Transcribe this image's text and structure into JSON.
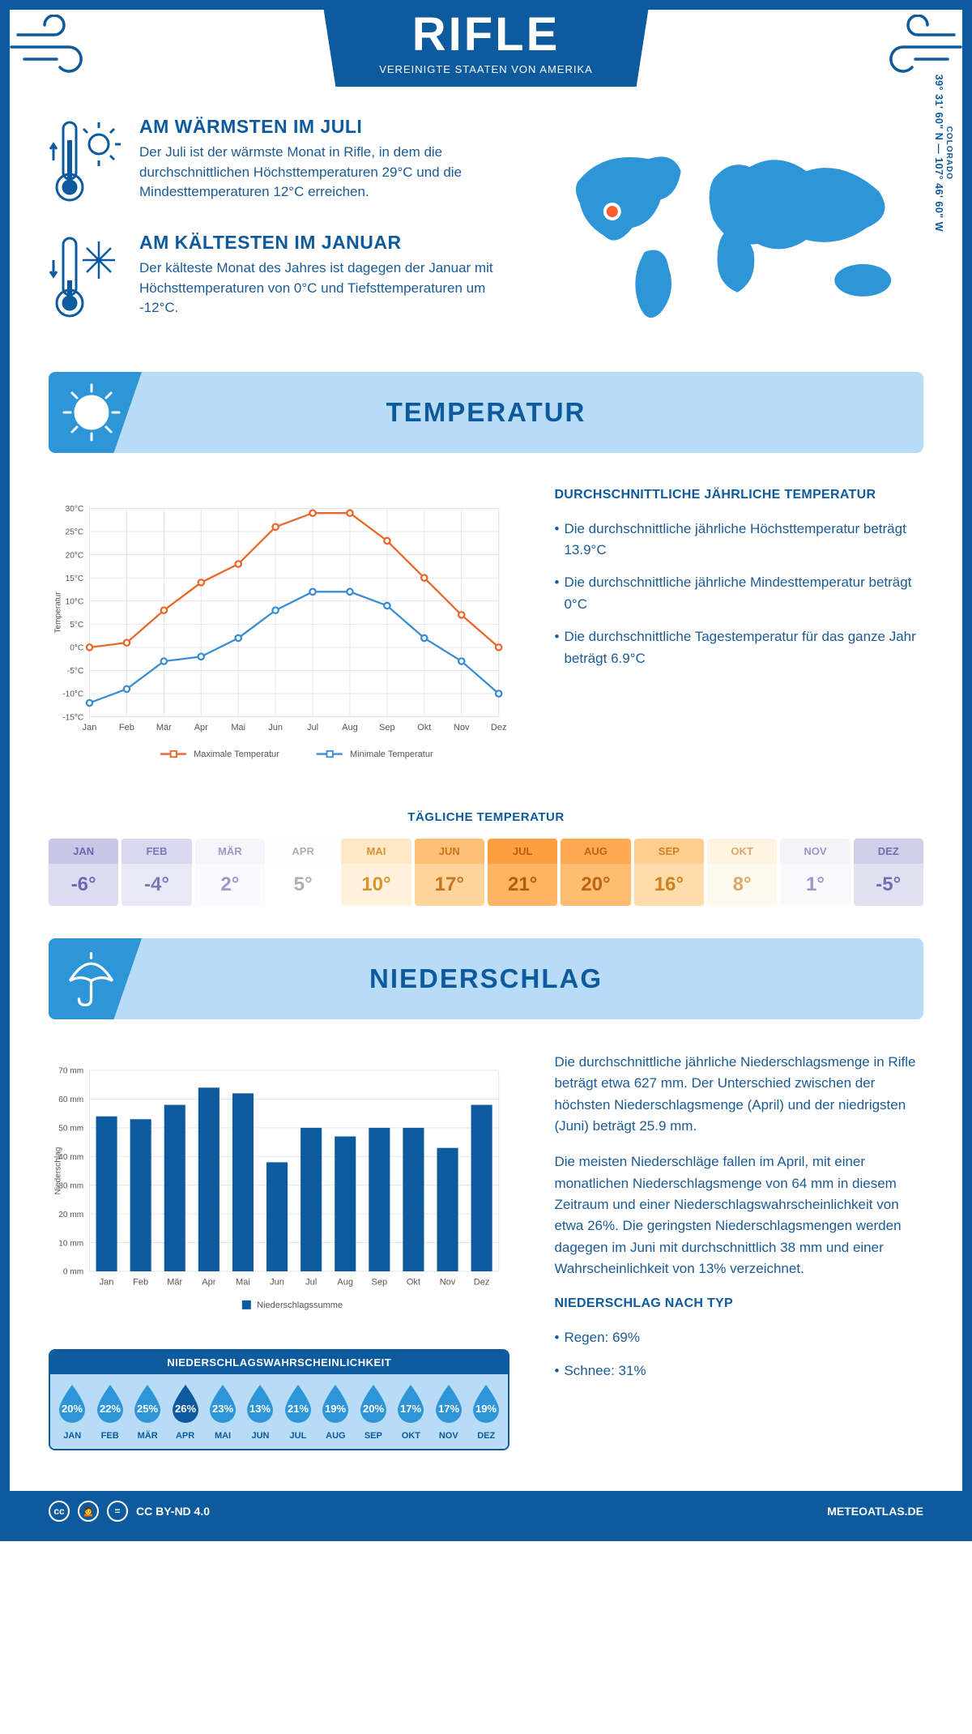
{
  "colors": {
    "primary": "#0d5a9e",
    "accent": "#2e96d8",
    "pale": "#b8dcf5",
    "text": "#1a5b95",
    "orange_line": "#e8682c",
    "blue_line": "#3a8dd4",
    "grid": "#e3e3e3",
    "bar": "#0d5a9e"
  },
  "header": {
    "title": "RIFLE",
    "subtitle": "VEREINIGTE STAATEN VON AMERIKA"
  },
  "facts": {
    "warm": {
      "title": "AM WÄRMSTEN IM JULI",
      "body": "Der Juli ist der wärmste Monat in Rifle, in dem die durchschnittlichen Höchsttemperaturen 29°C und die Mindesttemperaturen 12°C erreichen."
    },
    "cold": {
      "title": "AM KÄLTESTEN IM JANUAR",
      "body": "Der kälteste Monat des Jahres ist dagegen der Januar mit Höchsttemperaturen von 0°C und Tiefsttemperaturen um -12°C."
    }
  },
  "map": {
    "coords": "39° 31' 60\" N — 107° 46' 60\" W",
    "state": "COLORADO"
  },
  "sections": {
    "temp": "TEMPERATUR",
    "rain": "NIEDERSCHLAG"
  },
  "months": [
    "Jan",
    "Feb",
    "Mär",
    "Apr",
    "Mai",
    "Jun",
    "Jul",
    "Aug",
    "Sep",
    "Okt",
    "Nov",
    "Dez"
  ],
  "months_upper": [
    "JAN",
    "FEB",
    "MÄR",
    "APR",
    "MAI",
    "JUN",
    "JUL",
    "AUG",
    "SEP",
    "OKT",
    "NOV",
    "DEZ"
  ],
  "temp_chart": {
    "ylabel": "Temperatur",
    "ymin": -15,
    "ymax": 30,
    "ystep": 5,
    "max_series": [
      0,
      1,
      8,
      14,
      18,
      26,
      29,
      29,
      23,
      15,
      7,
      0
    ],
    "min_series": [
      -12,
      -9,
      -3,
      -2,
      2,
      8,
      12,
      12,
      9,
      2,
      -3,
      -10
    ],
    "legend_max": "Maximale Temperatur",
    "legend_min": "Minimale Temperatur"
  },
  "temp_notes": {
    "heading": "DURCHSCHNITTLICHE JÄHRLICHE TEMPERATUR",
    "b1": "Die durchschnittliche jährliche Höchsttemperatur beträgt 13.9°C",
    "b2": "Die durchschnittliche jährliche Mindesttemperatur beträgt 0°C",
    "b3": "Die durchschnittliche Tagestemperatur für das ganze Jahr beträgt 6.9°C"
  },
  "daily": {
    "heading": "TÄGLICHE TEMPERATUR",
    "values": [
      "-6°",
      "-4°",
      "2°",
      "5°",
      "10°",
      "17°",
      "21°",
      "20°",
      "16°",
      "8°",
      "1°",
      "-5°"
    ],
    "head_colors": [
      "#c9c7e8",
      "#dad8ef",
      "#f6f5fb",
      "#fefdff",
      "#ffe8c5",
      "#ffbf77",
      "#ff9e3e",
      "#ffa951",
      "#ffcd8e",
      "#fff3e1",
      "#f4f4f9",
      "#d0cfea"
    ],
    "body_colors": [
      "#dedcf1",
      "#e9e8f5",
      "#faf9fd",
      "#ffffff",
      "#fff1dc",
      "#ffd49b",
      "#ffb463",
      "#ffbd74",
      "#ffdca9",
      "#fff8ed",
      "#f9f9fc",
      "#e2e1f2"
    ],
    "text_colors": [
      "#6b6ab0",
      "#7a79b8",
      "#9a99c8",
      "#b0b0b0",
      "#d8922f",
      "#c9741a",
      "#b55d0e",
      "#bd6511",
      "#cf8222",
      "#d9a965",
      "#9a99c8",
      "#706fb3"
    ]
  },
  "rain_chart": {
    "ylabel": "Niederschlag",
    "ymax": 70,
    "ystep": 10,
    "values": [
      54,
      53,
      58,
      64,
      62,
      38,
      50,
      47,
      50,
      50,
      43,
      58
    ],
    "legend": "Niederschlagssumme"
  },
  "rain_text": {
    "p1": "Die durchschnittliche jährliche Niederschlagsmenge in Rifle beträgt etwa 627 mm. Der Unterschied zwischen der höchsten Niederschlagsmenge (April) und der niedrigsten (Juni) beträgt 25.9 mm.",
    "p2": "Die meisten Niederschläge fallen im April, mit einer monatlichen Niederschlagsmenge von 64 mm in diesem Zeitraum und einer Niederschlagswahrscheinlichkeit von etwa 26%. Die geringsten Niederschlagsmengen werden dagegen im Juni mit durchschnittlich 38 mm und einer Wahrscheinlichkeit von 13% verzeichnet.",
    "type_head": "NIEDERSCHLAG NACH TYP",
    "type1": "Regen: 69%",
    "type2": "Schnee: 31%"
  },
  "prob": {
    "heading": "NIEDERSCHLAGSWAHRSCHEINLICHKEIT",
    "values": [
      "20%",
      "22%",
      "25%",
      "26%",
      "23%",
      "13%",
      "21%",
      "19%",
      "20%",
      "17%",
      "17%",
      "19%"
    ],
    "dark_index": 3,
    "light_fill": "#2e96d8",
    "dark_fill": "#0d5a9e"
  },
  "footer": {
    "license": "CC BY-ND 4.0",
    "site": "METEOATLAS.DE"
  }
}
